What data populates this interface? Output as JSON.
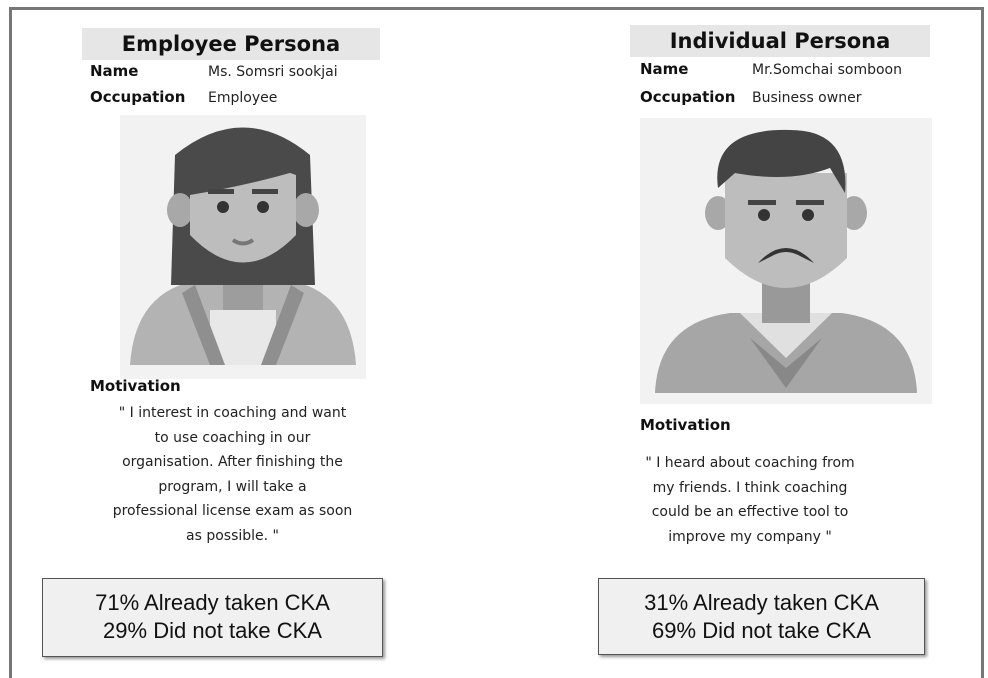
{
  "personas": [
    {
      "title": "Employee Persona",
      "name_label": "Name",
      "name": "Ms. Somsri sookjai",
      "occupation_label": "Occupation",
      "occupation": "Employee",
      "motivation_label": "Motivation",
      "motivation_lines": [
        "\" I interest in coaching and want",
        "to use coaching in our",
        "organisation. After finishing the",
        "program,  I will take a",
        "professional license exam as soon",
        "as possible. \""
      ],
      "stats": [
        "71% Already taken CKA",
        "29% Did not take CKA"
      ]
    },
    {
      "title": "Individual Persona",
      "name_label": "Name",
      "name": "Mr.Somchai somboon",
      "occupation_label": "Occupation",
      "occupation": "Business owner",
      "motivation_label": "Motivation",
      "motivation_lines": [
        "\" I heard about coaching from",
        "my friends. I think coaching",
        "could be an effective tool to",
        "improve my company \""
      ],
      "stats": [
        "31% Already taken CKA",
        "69% Did not take CKA"
      ]
    }
  ]
}
